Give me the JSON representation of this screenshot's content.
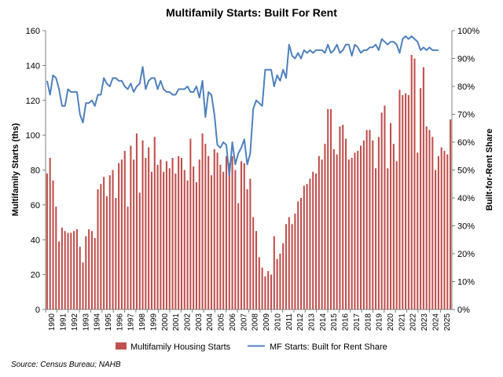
{
  "chart_data": {
    "type": "bar+line",
    "title": "Multifamily Starts: Built For Rent",
    "ylabel_left": "Multifamily Starts (ths)",
    "ylabel_right": "Built-for-Rent Share",
    "ylim_left": [
      0,
      160
    ],
    "ylim_right": [
      0,
      1
    ],
    "yticks_left": [
      "0",
      "20",
      "40",
      "60",
      "80",
      "100",
      "120",
      "140",
      "160"
    ],
    "yticks_right": [
      "0%",
      "10%",
      "20%",
      "30%",
      "40%",
      "50%",
      "60%",
      "70%",
      "80%",
      "90%",
      "100%"
    ],
    "x_labels": [
      "1990",
      "1991",
      "1992",
      "1993",
      "1994",
      "1995",
      "1996",
      "1997",
      "1998",
      "1999",
      "2000",
      "2001",
      "2002",
      "2003",
      "2004",
      "2005",
      "2006",
      "2007",
      "2008",
      "2009",
      "2010",
      "2011",
      "2012",
      "2013",
      "2014",
      "2015",
      "2016",
      "2017",
      "2018",
      "2019",
      "2020",
      "2021",
      "2022",
      "2023",
      "2024",
      "2025"
    ],
    "grid": false,
    "legend_position": "bottom",
    "source": "Source: Census Bureau; NAHB",
    "series": [
      {
        "name": "Multifamily Housing Starts",
        "kind": "bar",
        "color": "#c0504d",
        "values": [
          78,
          87,
          74,
          59,
          39,
          47,
          45,
          44,
          44,
          45,
          46,
          36,
          27,
          42,
          46,
          45,
          41,
          69,
          72,
          76,
          65,
          77,
          80,
          64,
          84,
          86,
          91,
          59,
          94,
          86,
          101,
          67,
          97,
          87,
          93,
          79,
          99,
          83,
          86,
          79,
          85,
          81,
          87,
          78,
          88,
          87,
          80,
          74,
          98,
          82,
          73,
          86,
          101,
          95,
          88,
          77,
          92,
          90,
          83,
          79,
          88,
          84,
          88,
          80,
          61,
          85,
          84,
          69,
          75,
          53,
          45,
          30,
          24,
          19,
          22,
          20,
          42,
          29,
          32,
          38,
          49,
          53,
          49,
          55,
          62,
          64,
          71,
          72,
          75,
          79,
          78,
          88,
          86,
          95,
          115,
          115,
          92,
          89,
          105,
          106,
          98,
          86,
          87,
          90,
          91,
          94,
          97,
          103,
          103,
          97,
          81,
          99,
          113,
          117,
          81,
          107,
          95,
          85,
          126,
          123,
          124,
          123,
          146,
          144,
          90,
          127,
          139,
          105,
          103,
          99,
          80,
          88,
          93,
          91,
          89,
          109
        ]
      },
      {
        "name": "MF Starts: Built for Rent Share",
        "kind": "line",
        "color": "#4f81bd",
        "axis": "right",
        "values": [
          0.82,
          0.77,
          0.84,
          0.83,
          0.79,
          0.73,
          0.73,
          0.79,
          0.78,
          0.78,
          0.78,
          0.7,
          0.67,
          0.74,
          0.74,
          0.75,
          0.73,
          0.77,
          0.77,
          0.83,
          0.81,
          0.8,
          0.83,
          0.83,
          0.82,
          0.82,
          0.8,
          0.79,
          0.81,
          0.78,
          0.8,
          0.81,
          0.87,
          0.79,
          0.82,
          0.83,
          0.83,
          0.79,
          0.82,
          0.79,
          0.78,
          0.78,
          0.77,
          0.77,
          0.79,
          0.79,
          0.79,
          0.8,
          0.78,
          0.78,
          0.8,
          0.76,
          0.82,
          0.69,
          0.78,
          0.77,
          0.7,
          0.59,
          0.58,
          0.6,
          0.59,
          0.48,
          0.6,
          0.52,
          0.56,
          0.58,
          0.61,
          0.52,
          0.56,
          0.72,
          0.75,
          0.74,
          0.73,
          0.86,
          0.86,
          0.86,
          0.8,
          0.84,
          0.82,
          0.86,
          0.83,
          0.95,
          0.91,
          0.9,
          0.92,
          0.9,
          0.93,
          0.92,
          0.93,
          0.92,
          0.93,
          0.93,
          0.93,
          0.92,
          0.95,
          0.92,
          0.93,
          0.95,
          0.92,
          0.93,
          0.95,
          0.95,
          0.91,
          0.95,
          0.94,
          0.92,
          0.93,
          0.93,
          0.94,
          0.94,
          0.95,
          0.93,
          0.97,
          0.96,
          0.95,
          0.96,
          0.96,
          0.95,
          0.92,
          0.97,
          0.98,
          0.97,
          0.98,
          0.97,
          0.96,
          0.93,
          0.94,
          0.93,
          0.94,
          0.93,
          0.93,
          0.93
        ]
      }
    ]
  },
  "legend": {
    "bar_label": "Multifamily Housing Starts",
    "line_label": "MF Starts: Built for Rent Share"
  }
}
